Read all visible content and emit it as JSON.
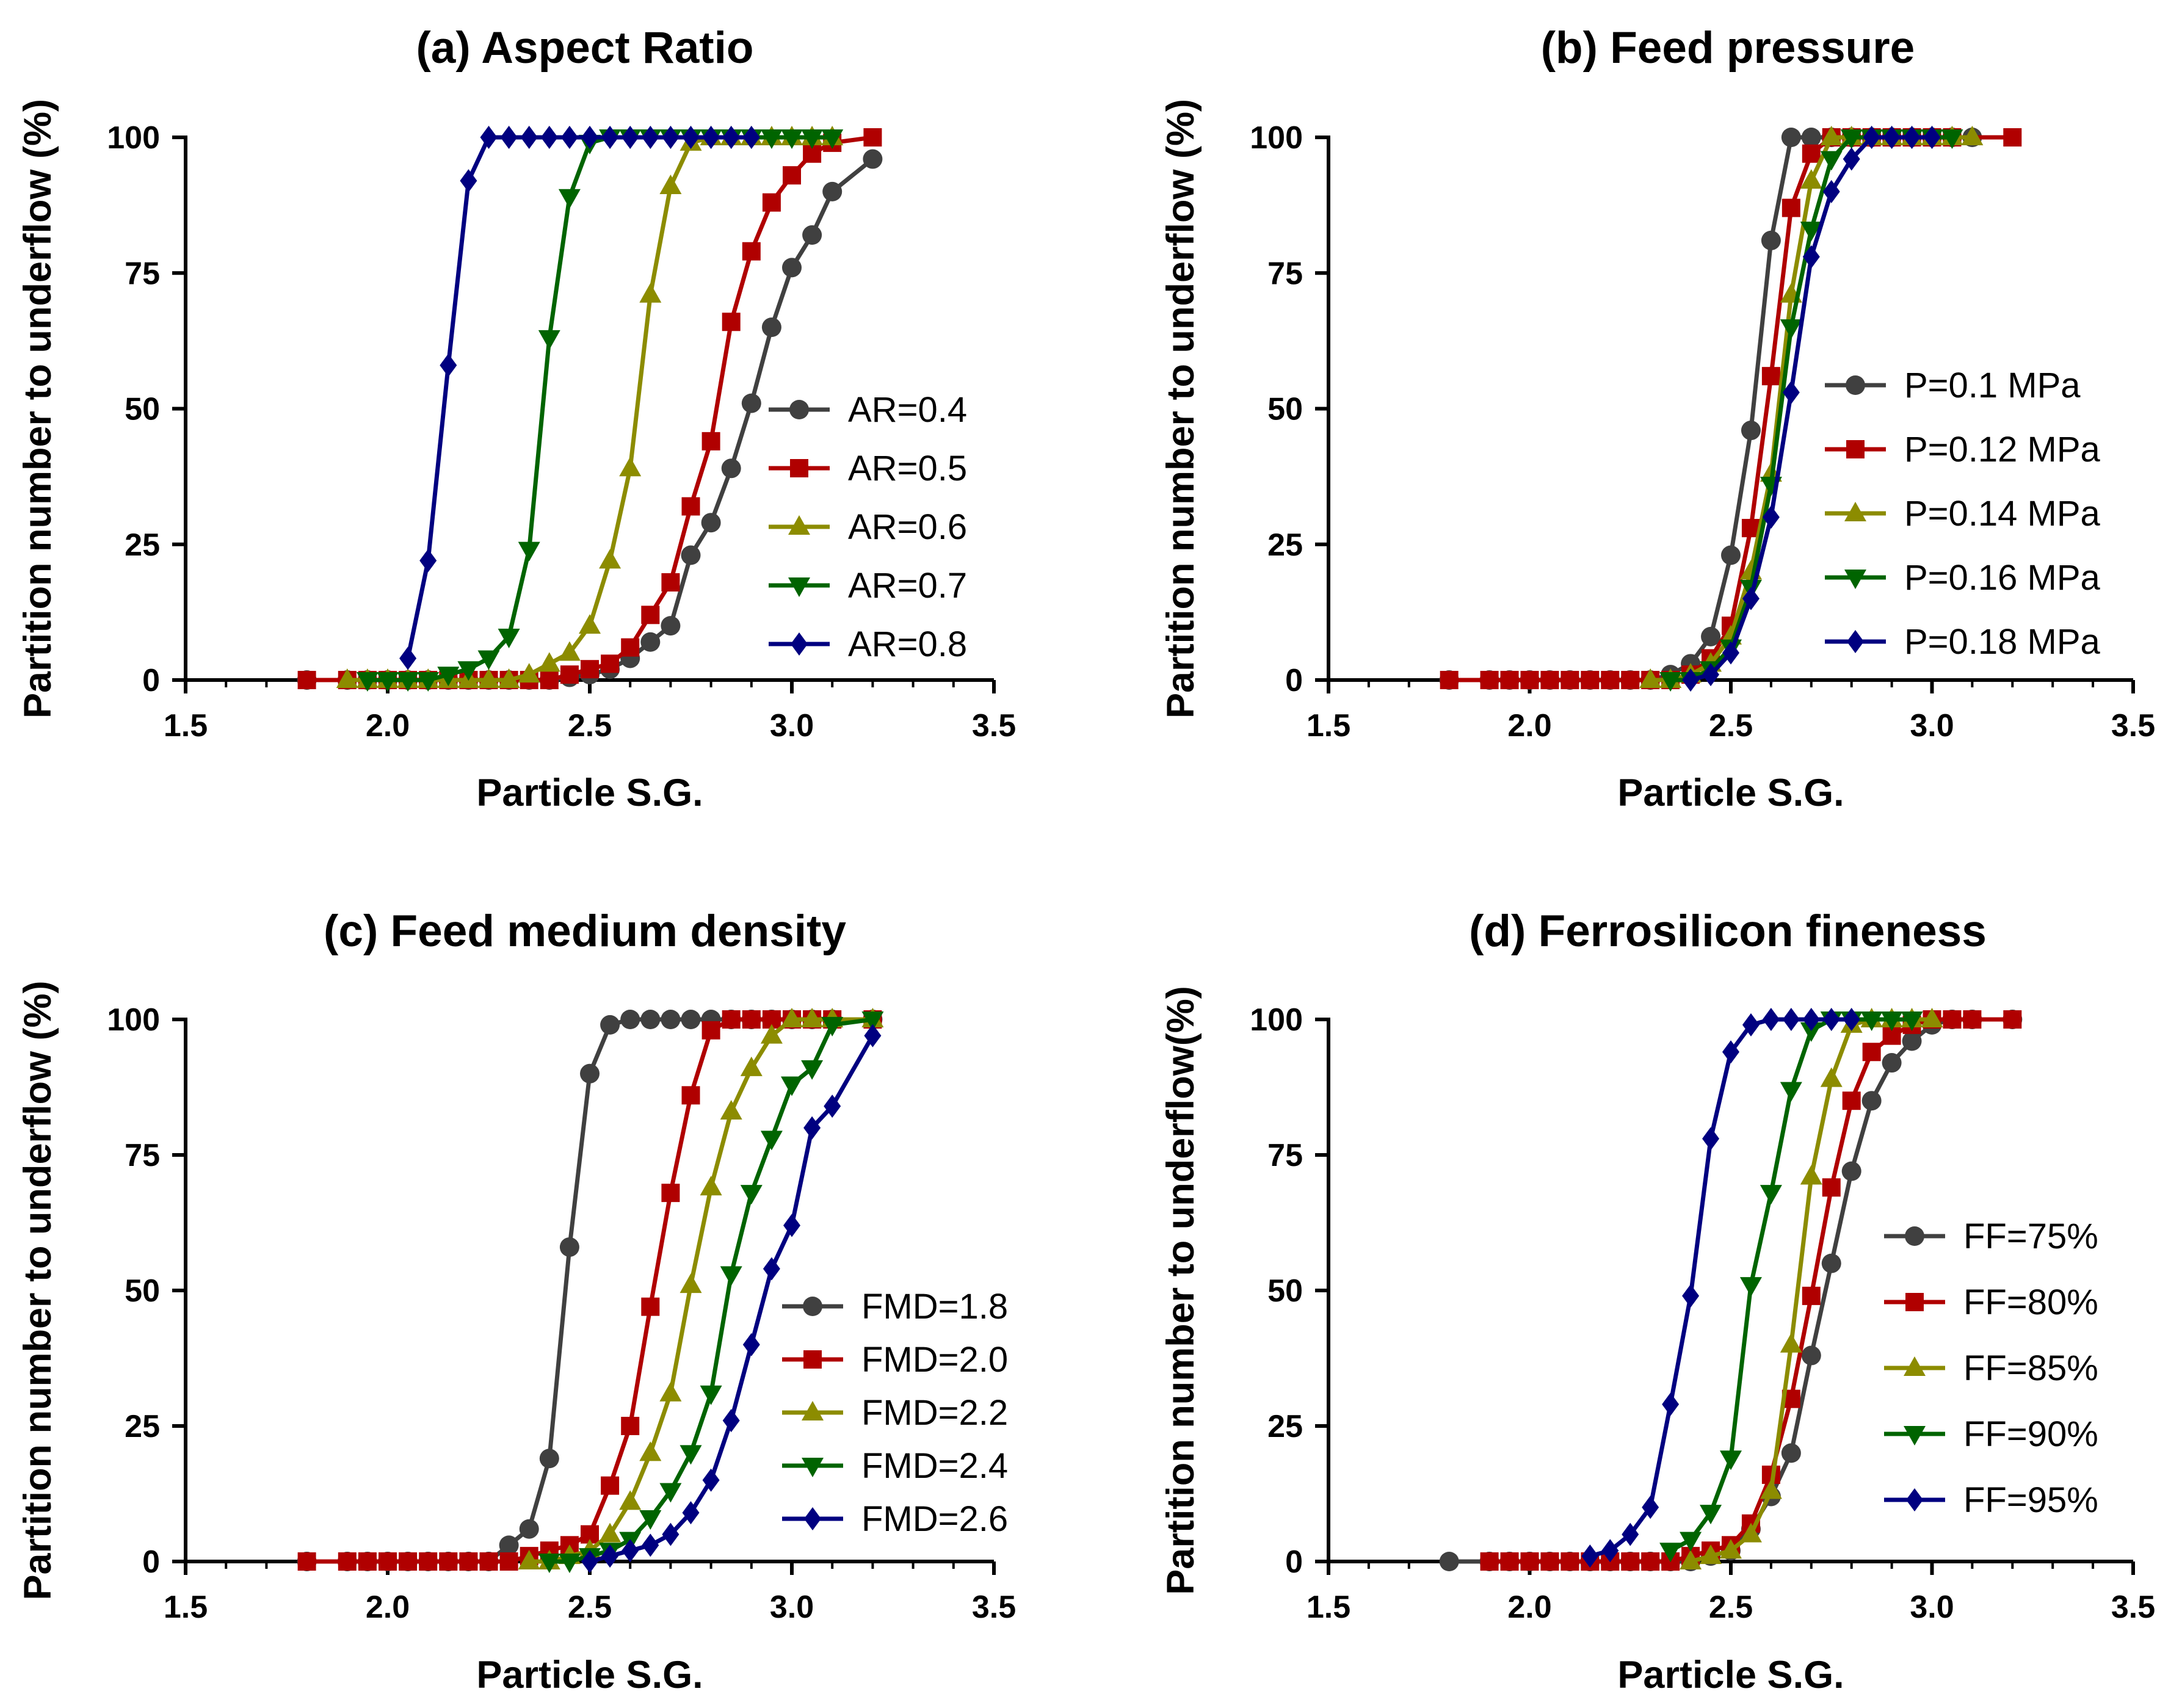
{
  "chart_data": [
    {
      "id": "a",
      "type": "line",
      "title": "(a) Aspect Ratio",
      "xlabel": "Particle S.G.",
      "ylabel": "Partition number to underflow (%)",
      "xlim": [
        1.5,
        3.5
      ],
      "ylim": [
        0,
        100
      ],
      "xticks": [
        "1.5",
        "2.0",
        "2.5",
        "3.0",
        "3.5"
      ],
      "yticks": [
        "0",
        "25",
        "50",
        "75",
        "100"
      ],
      "grid": false,
      "legend_position": "center-right",
      "series": [
        {
          "name": "AR=0.4",
          "color": "#404040",
          "marker": "circle",
          "x": [
            1.8,
            1.9,
            1.95,
            2.0,
            2.05,
            2.1,
            2.15,
            2.2,
            2.25,
            2.3,
            2.35,
            2.4,
            2.45,
            2.5,
            2.55,
            2.6,
            2.65,
            2.7,
            2.75,
            2.8,
            2.85,
            2.9,
            2.95,
            3.0,
            3.05,
            3.1,
            3.2
          ],
          "y": [
            0,
            0,
            0,
            0,
            0,
            0,
            0,
            0,
            0,
            0,
            0,
            0,
            0.5,
            1,
            2,
            4,
            7,
            10,
            23,
            29,
            39,
            51,
            65,
            76,
            82,
            90,
            96
          ]
        },
        {
          "name": "AR=0.5",
          "color": "#b00000",
          "marker": "square",
          "x": [
            1.8,
            1.9,
            1.95,
            2.0,
            2.05,
            2.1,
            2.15,
            2.2,
            2.25,
            2.3,
            2.35,
            2.4,
            2.45,
            2.5,
            2.55,
            2.6,
            2.65,
            2.7,
            2.75,
            2.8,
            2.85,
            2.9,
            2.95,
            3.0,
            3.05,
            3.1,
            3.2
          ],
          "y": [
            0,
            0,
            0,
            0,
            0,
            0,
            0,
            0,
            0,
            0,
            0,
            0,
            1,
            2,
            3,
            6,
            12,
            18,
            32,
            44,
            66,
            79,
            88,
            93,
            97,
            99,
            100
          ]
        },
        {
          "name": "AR=0.6",
          "color": "#8c8c00",
          "marker": "triangle-up",
          "x": [
            1.9,
            1.95,
            2.0,
            2.05,
            2.1,
            2.15,
            2.2,
            2.25,
            2.3,
            2.35,
            2.4,
            2.45,
            2.5,
            2.55,
            2.6,
            2.65,
            2.7,
            2.75,
            2.8,
            2.85,
            2.9,
            2.95,
            3.0,
            3.05,
            3.1
          ],
          "y": [
            0,
            0,
            0,
            0,
            0,
            0,
            0,
            0,
            0,
            1,
            3,
            5,
            10,
            22,
            39,
            71,
            91,
            99,
            100,
            100,
            100,
            100,
            100,
            100,
            100
          ]
        },
        {
          "name": "AR=0.7",
          "color": "#006400",
          "marker": "triangle-down",
          "x": [
            1.95,
            2.0,
            2.05,
            2.1,
            2.15,
            2.2,
            2.25,
            2.3,
            2.35,
            2.4,
            2.45,
            2.5,
            2.55,
            2.6,
            2.65,
            2.7,
            2.75,
            2.8,
            2.85,
            2.9,
            2.95,
            3.0,
            3.05,
            3.1
          ],
          "y": [
            0,
            0,
            0,
            0,
            1,
            2,
            4,
            8,
            24,
            63,
            89,
            99,
            100,
            100,
            100,
            100,
            100,
            100,
            100,
            100,
            100,
            100,
            100,
            100
          ]
        },
        {
          "name": "AR=0.8",
          "color": "#000080",
          "marker": "diamond",
          "x": [
            2.05,
            2.1,
            2.15,
            2.2,
            2.25,
            2.3,
            2.35,
            2.4,
            2.45,
            2.5,
            2.55,
            2.6,
            2.65,
            2.7,
            2.75,
            2.8,
            2.85,
            2.9
          ],
          "y": [
            4,
            22,
            58,
            92,
            100,
            100,
            100,
            100,
            100,
            100,
            100,
            100,
            100,
            100,
            100,
            100,
            100,
            100
          ]
        }
      ]
    },
    {
      "id": "b",
      "type": "line",
      "title": "(b) Feed pressure",
      "xlabel": "Particle S.G.",
      "ylabel": "Partition number to underflow (%)",
      "xlim": [
        1.5,
        3.5
      ],
      "ylim": [
        0,
        100
      ],
      "xticks": [
        "1.5",
        "2.0",
        "2.5",
        "3.0",
        "3.5"
      ],
      "yticks": [
        "0",
        "25",
        "50",
        "75",
        "100"
      ],
      "grid": false,
      "legend_position": "center-right",
      "series": [
        {
          "name": "P=0.1 MPa",
          "color": "#404040",
          "marker": "circle",
          "x": [
            1.8,
            1.9,
            1.95,
            2.0,
            2.05,
            2.1,
            2.15,
            2.2,
            2.25,
            2.3,
            2.35,
            2.4,
            2.45,
            2.5,
            2.55,
            2.6,
            2.65,
            2.7,
            2.75,
            2.8,
            2.85,
            2.9,
            2.95,
            3.0,
            3.05,
            3.1
          ],
          "y": [
            0,
            0,
            0,
            0,
            0,
            0,
            0,
            0,
            0,
            0,
            1,
            3,
            8,
            23,
            46,
            81,
            100,
            100,
            100,
            100,
            100,
            100,
            100,
            100,
            100,
            100
          ]
        },
        {
          "name": "P=0.12 MPa",
          "color": "#b00000",
          "marker": "square",
          "x": [
            1.8,
            1.9,
            1.95,
            2.0,
            2.05,
            2.1,
            2.15,
            2.2,
            2.25,
            2.3,
            2.35,
            2.4,
            2.45,
            2.5,
            2.55,
            2.6,
            2.65,
            2.7,
            2.75,
            2.8,
            2.85,
            2.9,
            2.95,
            3.0,
            3.05,
            3.2
          ],
          "y": [
            0,
            0,
            0,
            0,
            0,
            0,
            0,
            0,
            0,
            0,
            0,
            1,
            4,
            10,
            28,
            56,
            87,
            97,
            100,
            100,
            100,
            100,
            100,
            100,
            100,
            100
          ]
        },
        {
          "name": "P=0.14 MPa",
          "color": "#8c8c00",
          "marker": "triangle-up",
          "x": [
            2.3,
            2.35,
            2.4,
            2.45,
            2.5,
            2.55,
            2.6,
            2.65,
            2.7,
            2.75,
            2.8,
            2.85,
            2.9,
            2.95,
            3.0,
            3.05,
            3.1
          ],
          "y": [
            0,
            0,
            1,
            3,
            8,
            20,
            38,
            71,
            92,
            100,
            100,
            100,
            100,
            100,
            100,
            100,
            100
          ]
        },
        {
          "name": "P=0.16 MPa",
          "color": "#006400",
          "marker": "triangle-down",
          "x": [
            2.35,
            2.4,
            2.45,
            2.5,
            2.55,
            2.6,
            2.65,
            2.7,
            2.75,
            2.8,
            2.85,
            2.9,
            2.95,
            3.0,
            3.05
          ],
          "y": [
            0,
            0,
            2,
            6,
            17,
            36,
            65,
            83,
            96,
            100,
            100,
            100,
            100,
            100,
            100
          ]
        },
        {
          "name": "P=0.18 MPa",
          "color": "#000080",
          "marker": "diamond",
          "x": [
            2.4,
            2.45,
            2.5,
            2.55,
            2.6,
            2.65,
            2.7,
            2.75,
            2.8,
            2.85,
            2.9,
            2.95,
            3.0
          ],
          "y": [
            0,
            1,
            5,
            15,
            30,
            53,
            78,
            90,
            96,
            100,
            100,
            100,
            100
          ]
        }
      ]
    },
    {
      "id": "c",
      "type": "line",
      "title": "(c) Feed medium density",
      "xlabel": "Particle S.G.",
      "ylabel": "Partition number to underflow (%)",
      "xlim": [
        1.5,
        3.5
      ],
      "ylim": [
        0,
        100
      ],
      "xticks": [
        "1.5",
        "2.0",
        "2.5",
        "3.0",
        "3.5"
      ],
      "yticks": [
        "0",
        "25",
        "50",
        "75",
        "100"
      ],
      "grid": false,
      "legend_position": "center-right",
      "series": [
        {
          "name": "FMD=1.8",
          "color": "#404040",
          "marker": "circle",
          "x": [
            1.8,
            1.9,
            1.95,
            2.0,
            2.05,
            2.1,
            2.15,
            2.2,
            2.25,
            2.3,
            2.35,
            2.4,
            2.45,
            2.5,
            2.55,
            2.6,
            2.65,
            2.7,
            2.75,
            2.8,
            2.85,
            2.9,
            2.95,
            3.0,
            3.05,
            3.1,
            3.2
          ],
          "y": [
            0,
            0,
            0,
            0,
            0,
            0,
            0,
            0,
            0,
            3,
            6,
            19,
            58,
            90,
            99,
            100,
            100,
            100,
            100,
            100,
            100,
            100,
            100,
            100,
            100,
            100,
            100
          ]
        },
        {
          "name": "FMD=2.0",
          "color": "#b00000",
          "marker": "square",
          "x": [
            1.8,
            1.9,
            1.95,
            2.0,
            2.05,
            2.1,
            2.15,
            2.2,
            2.25,
            2.3,
            2.35,
            2.4,
            2.45,
            2.5,
            2.55,
            2.6,
            2.65,
            2.7,
            2.75,
            2.8,
            2.85,
            2.9,
            2.95,
            3.0,
            3.05,
            3.1,
            3.2
          ],
          "y": [
            0,
            0,
            0,
            0,
            0,
            0,
            0,
            0,
            0,
            0,
            1,
            2,
            3,
            5,
            14,
            25,
            47,
            68,
            86,
            98,
            100,
            100,
            100,
            100,
            100,
            100,
            100
          ]
        },
        {
          "name": "FMD=2.2",
          "color": "#8c8c00",
          "marker": "triangle-up",
          "x": [
            2.35,
            2.4,
            2.45,
            2.5,
            2.55,
            2.6,
            2.65,
            2.7,
            2.75,
            2.8,
            2.85,
            2.9,
            2.95,
            3.0,
            3.05,
            3.1,
            3.2
          ],
          "y": [
            0,
            0,
            1,
            2,
            5,
            11,
            20,
            31,
            51,
            69,
            83,
            91,
            97,
            100,
            100,
            100,
            100
          ]
        },
        {
          "name": "FMD=2.4",
          "color": "#006400",
          "marker": "triangle-down",
          "x": [
            2.4,
            2.45,
            2.5,
            2.55,
            2.6,
            2.65,
            2.7,
            2.75,
            2.8,
            2.85,
            2.9,
            2.95,
            3.0,
            3.05,
            3.1,
            3.2
          ],
          "y": [
            0,
            0,
            1,
            2,
            4,
            8,
            13,
            20,
            31,
            53,
            68,
            78,
            88,
            91,
            99,
            100
          ]
        },
        {
          "name": "FMD=2.6",
          "color": "#000080",
          "marker": "diamond",
          "x": [
            2.5,
            2.55,
            2.6,
            2.65,
            2.7,
            2.75,
            2.8,
            2.85,
            2.9,
            2.95,
            3.0,
            3.05,
            3.1,
            3.2
          ],
          "y": [
            0,
            1,
            2,
            3,
            5,
            9,
            15,
            26,
            40,
            54,
            62,
            80,
            84,
            97
          ]
        }
      ]
    },
    {
      "id": "d",
      "type": "line",
      "title": "(d) Ferrosilicon fineness",
      "xlabel": "Particle S.G.",
      "ylabel": "Partition number to underflow(%)",
      "xlim": [
        1.5,
        3.5
      ],
      "ylim": [
        0,
        100
      ],
      "xticks": [
        "1.5",
        "2.0",
        "2.5",
        "3.0",
        "3.5"
      ],
      "yticks": [
        "0",
        "25",
        "50",
        "75",
        "100"
      ],
      "grid": false,
      "legend_position": "center-right",
      "series": [
        {
          "name": "FF=75%",
          "color": "#404040",
          "marker": "circle",
          "x": [
            1.8,
            1.9,
            1.95,
            2.0,
            2.05,
            2.1,
            2.15,
            2.2,
            2.25,
            2.3,
            2.35,
            2.4,
            2.45,
            2.5,
            2.55,
            2.6,
            2.65,
            2.7,
            2.75,
            2.8,
            2.85,
            2.9,
            2.95,
            3.0,
            3.05,
            3.1,
            3.2
          ],
          "y": [
            0,
            0,
            0,
            0,
            0,
            0,
            0,
            0,
            0,
            0,
            0,
            0,
            1,
            2,
            6,
            12,
            20,
            38,
            55,
            72,
            85,
            92,
            96,
            99,
            100,
            100,
            100
          ]
        },
        {
          "name": "FF=80%",
          "color": "#b00000",
          "marker": "square",
          "x": [
            1.9,
            1.95,
            2.0,
            2.05,
            2.1,
            2.15,
            2.2,
            2.25,
            2.3,
            2.35,
            2.4,
            2.45,
            2.5,
            2.55,
            2.6,
            2.65,
            2.7,
            2.75,
            2.8,
            2.85,
            2.9,
            2.95,
            3.0,
            3.05,
            3.1,
            3.2
          ],
          "y": [
            0,
            0,
            0,
            0,
            0,
            0,
            0,
            0,
            0,
            0,
            1,
            2,
            3,
            7,
            16,
            30,
            49,
            69,
            85,
            94,
            97,
            99,
            100,
            100,
            100,
            100
          ]
        },
        {
          "name": "FF=85%",
          "color": "#8c8c00",
          "marker": "triangle-up",
          "x": [
            2.4,
            2.45,
            2.5,
            2.55,
            2.6,
            2.65,
            2.7,
            2.75,
            2.8,
            2.85,
            2.9,
            2.95,
            3.0
          ],
          "y": [
            0,
            1,
            2,
            5,
            13,
            40,
            71,
            89,
            99,
            100,
            100,
            100,
            100
          ]
        },
        {
          "name": "FF=90%",
          "color": "#006400",
          "marker": "triangle-down",
          "x": [
            2.35,
            2.4,
            2.45,
            2.5,
            2.55,
            2.6,
            2.65,
            2.7,
            2.75,
            2.8,
            2.85,
            2.9,
            2.95
          ],
          "y": [
            2,
            4,
            9,
            19,
            51,
            68,
            87,
            98,
            100,
            100,
            100,
            100,
            100
          ]
        },
        {
          "name": "FF=95%",
          "color": "#000080",
          "marker": "diamond",
          "x": [
            2.15,
            2.2,
            2.25,
            2.3,
            2.35,
            2.4,
            2.45,
            2.5,
            2.55,
            2.6,
            2.65,
            2.7,
            2.75,
            2.8
          ],
          "y": [
            1,
            2,
            5,
            10,
            29,
            49,
            78,
            94,
            99,
            100,
            100,
            100,
            100,
            100
          ]
        }
      ]
    }
  ]
}
